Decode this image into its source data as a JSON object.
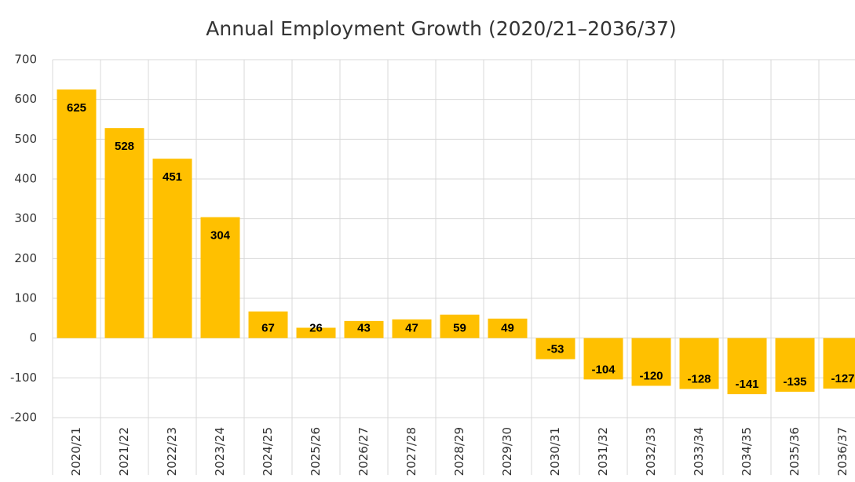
{
  "chart_data": {
    "type": "bar",
    "title": "Annual Employment Growth (2020/21–2036/37)",
    "categories": [
      "2020/21",
      "2021/22",
      "2022/23",
      "2023/24",
      "2024/25",
      "2025/26",
      "2026/27",
      "2027/28",
      "2028/29",
      "2029/30",
      "2030/31",
      "2031/32",
      "2032/33",
      "2033/34",
      "2034/35",
      "2035/36",
      "2036/37"
    ],
    "values": [
      625,
      528,
      451,
      304,
      67,
      26,
      43,
      47,
      59,
      49,
      -53,
      -104,
      -120,
      -128,
      -141,
      -135,
      -127
    ],
    "color": "#ffc000",
    "ylim": [
      -200,
      700
    ],
    "yticks": [
      -200,
      -100,
      0,
      100,
      200,
      300,
      400,
      500,
      600,
      700
    ],
    "grid": true
  }
}
